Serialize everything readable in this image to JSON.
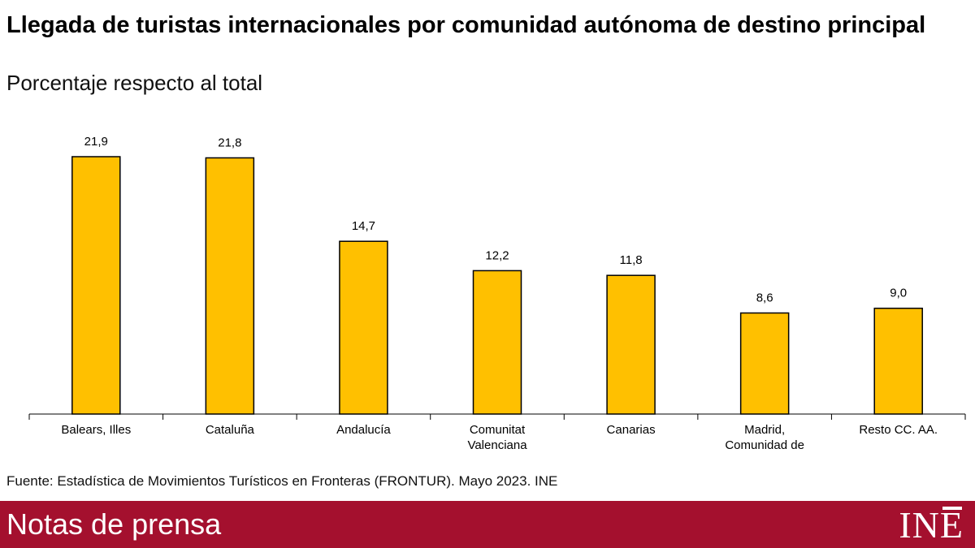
{
  "header": {
    "title": "Llegada de turistas internacionales por comunidad autónoma de destino principal",
    "subtitle": "Porcentaje respecto al total"
  },
  "chart_data": {
    "type": "bar",
    "title": "Llegada de turistas internacionales por comunidad autónoma de destino principal",
    "subtitle": "Porcentaje respecto al total",
    "categories": [
      [
        "Balears, Illes"
      ],
      [
        "Cataluña"
      ],
      [
        "Andalucía"
      ],
      [
        "Comunitat",
        "Valenciana"
      ],
      [
        "Canarias"
      ],
      [
        "Madrid,",
        "Comunidad de"
      ],
      [
        "Resto CC. AA."
      ]
    ],
    "values": [
      21.9,
      21.8,
      14.7,
      12.2,
      11.8,
      8.6,
      9.0
    ],
    "value_labels": [
      "21,9",
      "21,8",
      "14,7",
      "12,2",
      "11,8",
      "8,6",
      "9,0"
    ],
    "xlabel": "",
    "ylabel": "",
    "ylim": [
      0,
      21.9
    ],
    "grid": false,
    "legend": "none",
    "bar_color": "#ffc000",
    "bar_stroke": "#000000"
  },
  "source": "Fuente: Estadística de Movimientos Turísticos en Fronteras (FRONTUR). Mayo 2023. INE",
  "footer": {
    "label": "Notas de prensa",
    "logo_text": "INE",
    "color": "#a4102e"
  }
}
